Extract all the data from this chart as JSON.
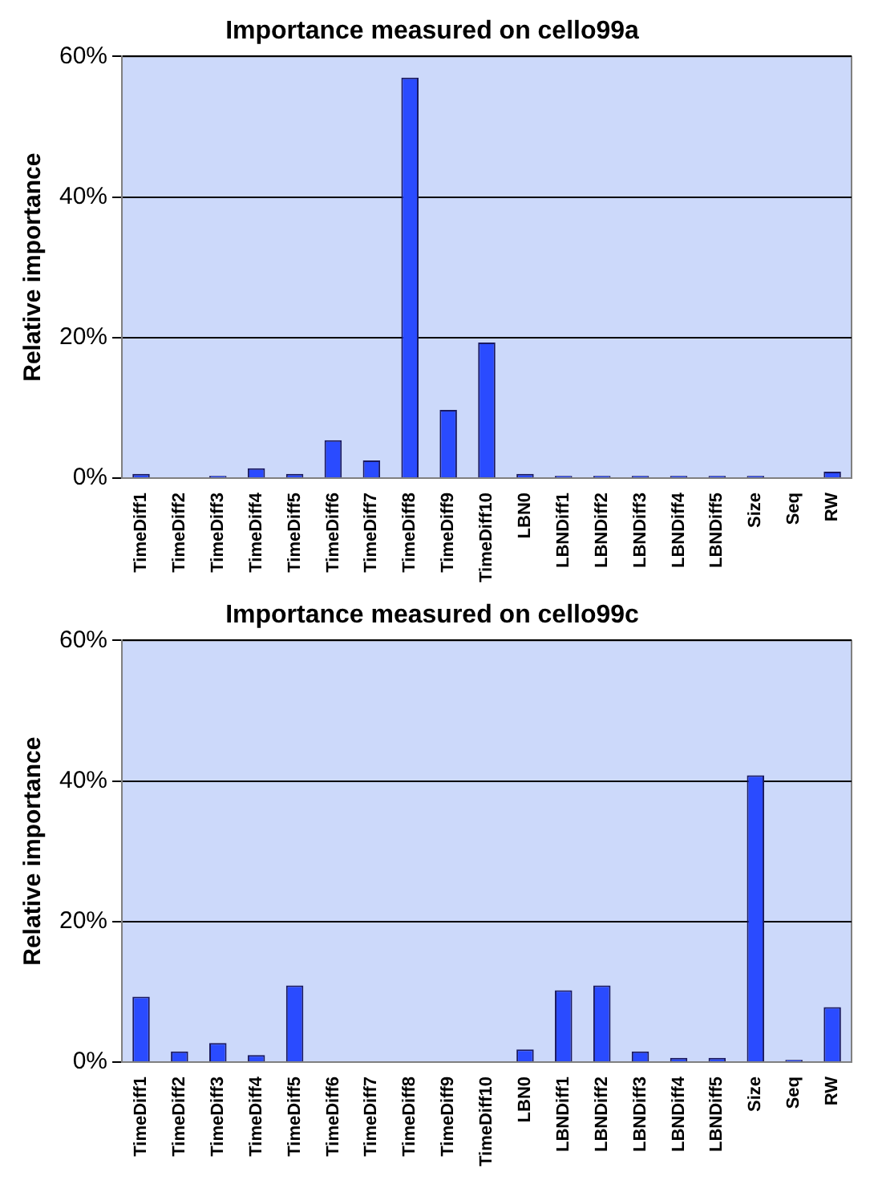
{
  "chart_data": [
    {
      "type": "bar",
      "title": "Importance measured on cello99a",
      "ylabel": "Relative importance",
      "categories": [
        "TimeDiff1",
        "TimeDiff2",
        "TimeDiff3",
        "TimeDiff4",
        "TimeDiff5",
        "TimeDiff6",
        "TimeDiff7",
        "TimeDiff8",
        "TimeDiff9",
        "TimeDiff10",
        "LBN0",
        "LBNDiff1",
        "LBNDiff2",
        "LBNDiff3",
        "LBNDiff4",
        "LBNDiff5",
        "Size",
        "Seq",
        "RW"
      ],
      "values": [
        0.6,
        0,
        0.3,
        1.4,
        0.6,
        5.4,
        2.5,
        57,
        9.7,
        19.3,
        0.6,
        0.3,
        0.3,
        0.3,
        0.3,
        0.3,
        0.3,
        0,
        0.9
      ],
      "color": "#2a4bff",
      "ylim": [
        0,
        60
      ],
      "yticks": [
        {
          "value": 0,
          "label": "0%"
        },
        {
          "value": 20,
          "label": "20%"
        },
        {
          "value": 40,
          "label": "40%"
        },
        {
          "value": 60,
          "label": "60%"
        }
      ],
      "grid": "y"
    },
    {
      "type": "bar",
      "title": "Importance measured on cello99c",
      "ylabel": "Relative importance",
      "categories": [
        "TimeDiff1",
        "TimeDiff2",
        "TimeDiff3",
        "TimeDiff4",
        "TimeDiff5",
        "TimeDiff6",
        "TimeDiff7",
        "TimeDiff8",
        "TimeDiff9",
        "TimeDiff10",
        "LBN0",
        "LBNDiff1",
        "LBNDiff2",
        "LBNDiff3",
        "LBNDiff4",
        "LBNDiff5",
        "Size",
        "Seq",
        "RW"
      ],
      "values": [
        9.3,
        1.5,
        2.7,
        1,
        10.9,
        0,
        0,
        0,
        0,
        0,
        1.8,
        10.2,
        10.9,
        1.5,
        0.6,
        0.6,
        40.8,
        0.3,
        7.8
      ],
      "color": "#2a4bff",
      "ylim": [
        0,
        60
      ],
      "yticks": [
        {
          "value": 0,
          "label": "0%"
        },
        {
          "value": 20,
          "label": "20%"
        },
        {
          "value": 40,
          "label": "40%"
        },
        {
          "value": 60,
          "label": "60%"
        }
      ],
      "grid": "y"
    }
  ]
}
